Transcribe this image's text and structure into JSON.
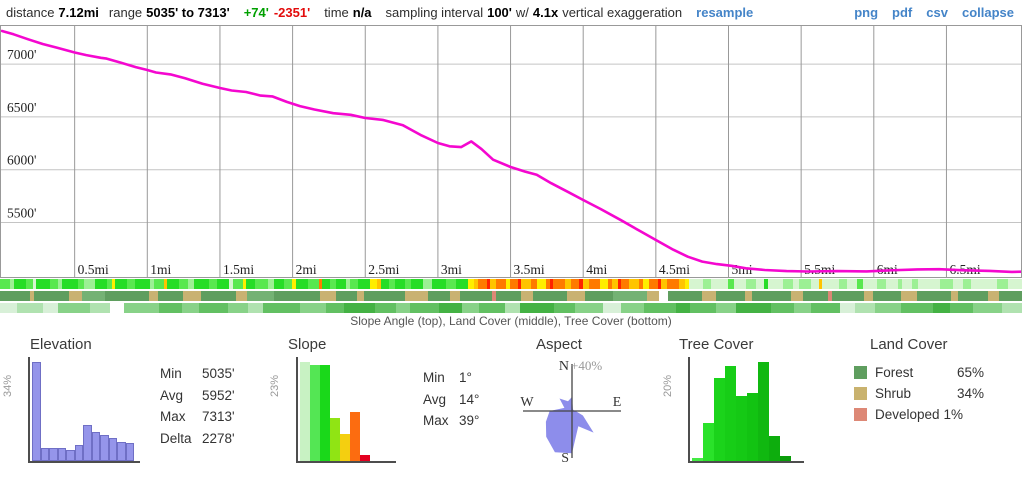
{
  "header": {
    "distance_label": "distance",
    "distance": "7.12mi",
    "range_label": "range",
    "range": "5035' to 7313'",
    "gain": "+74'",
    "loss": "-2351'",
    "time_label": "time",
    "time": "n/a",
    "interval_label": "sampling interval",
    "interval": "100'",
    "w_label": "w/",
    "exaggeration": "4.1x",
    "exaggeration_label": "vertical exaggeration",
    "resample": "resample",
    "links": [
      "png",
      "pdf",
      "csv",
      "collapse"
    ]
  },
  "chart": {
    "line_color": "#f407cf",
    "grid_color_v": "#999999",
    "grid_color_h": "#c4c4c4",
    "border_color": "#999999",
    "y_ticks": [
      {
        "label": "7000'",
        "elev": 7000
      },
      {
        "label": "6500'",
        "elev": 6500
      },
      {
        "label": "6000'",
        "elev": 6000
      },
      {
        "label": "5500'",
        "elev": 5500
      }
    ],
    "x_ticks": [
      {
        "label": "0.5mi",
        "mi": 0.5
      },
      {
        "label": "1mi",
        "mi": 1
      },
      {
        "label": "1.5mi",
        "mi": 1.5
      },
      {
        "label": "2mi",
        "mi": 2
      },
      {
        "label": "2.5mi",
        "mi": 2.5
      },
      {
        "label": "3mi",
        "mi": 3
      },
      {
        "label": "3.5mi",
        "mi": 3.5
      },
      {
        "label": "4mi",
        "mi": 4
      },
      {
        "label": "4.5mi",
        "mi": 4.5
      },
      {
        "label": "5mi",
        "mi": 5
      },
      {
        "label": "5.5mi",
        "mi": 5.5
      },
      {
        "label": "6mi",
        "mi": 6
      },
      {
        "label": "6.5mi",
        "mi": 6.5
      }
    ]
  },
  "chart_data": [
    {
      "type": "line",
      "title": "elevation profile",
      "x_unit": "mi",
      "y_unit": "ft",
      "x_range": [
        0,
        7.12
      ],
      "y_range": [
        4975,
        7355
      ],
      "points": [
        [
          0,
          7313
        ],
        [
          0.08,
          7282
        ],
        [
          0.18,
          7235
        ],
        [
          0.28,
          7190
        ],
        [
          0.38,
          7155
        ],
        [
          0.5,
          7110
        ],
        [
          0.58,
          7085
        ],
        [
          0.68,
          7060
        ],
        [
          0.72,
          7052
        ],
        [
          0.82,
          7012
        ],
        [
          0.92,
          6972
        ],
        [
          1.0,
          6944
        ],
        [
          1.06,
          6920
        ],
        [
          1.16,
          6902
        ],
        [
          1.26,
          6866
        ],
        [
          1.38,
          6814
        ],
        [
          1.5,
          6774
        ],
        [
          1.58,
          6750
        ],
        [
          1.68,
          6736
        ],
        [
          1.78,
          6702
        ],
        [
          1.86,
          6694
        ],
        [
          1.96,
          6642
        ],
        [
          2.05,
          6602
        ],
        [
          2.15,
          6570
        ],
        [
          2.28,
          6535
        ],
        [
          2.4,
          6520
        ],
        [
          2.5,
          6490
        ],
        [
          2.62,
          6472
        ],
        [
          2.76,
          6420
        ],
        [
          2.88,
          6330
        ],
        [
          3.0,
          6253
        ],
        [
          3.08,
          6222
        ],
        [
          3.16,
          6214
        ],
        [
          3.23,
          6268
        ],
        [
          3.3,
          6195
        ],
        [
          3.38,
          6095
        ],
        [
          3.5,
          6026
        ],
        [
          3.6,
          5982
        ],
        [
          3.68,
          5952
        ],
        [
          3.78,
          5872
        ],
        [
          3.9,
          5786
        ],
        [
          4.0,
          5713
        ],
        [
          4.12,
          5628
        ],
        [
          4.26,
          5522
        ],
        [
          4.4,
          5412
        ],
        [
          4.5,
          5334
        ],
        [
          4.62,
          5242
        ],
        [
          4.72,
          5176
        ],
        [
          4.82,
          5130
        ],
        [
          4.92,
          5106
        ],
        [
          5.02,
          5090
        ],
        [
          5.12,
          5066
        ],
        [
          5.25,
          5050
        ],
        [
          5.4,
          5040
        ],
        [
          5.55,
          5036
        ],
        [
          5.75,
          5040
        ],
        [
          5.95,
          5037
        ],
        [
          6.1,
          5046
        ],
        [
          6.3,
          5056
        ],
        [
          6.45,
          5058
        ],
        [
          6.6,
          5048
        ],
        [
          6.8,
          5042
        ],
        [
          6.95,
          5032
        ],
        [
          7.12,
          5036
        ]
      ]
    },
    {
      "type": "bar",
      "title": "Elevation",
      "unit": "%",
      "axis_max_label": "34%",
      "max_value": 34,
      "values": [
        34,
        4.5,
        4.5,
        4.5,
        3.9,
        5.6,
        12.5,
        9.8,
        8.9,
        7.8,
        6.5,
        6.2
      ],
      "color": "#9595ea"
    },
    {
      "type": "bar",
      "title": "Slope",
      "unit": "%",
      "axis_max_label": "23%",
      "max_value": 23,
      "values": [
        23,
        22.4,
        22.4,
        10,
        6.3,
        11.5,
        1.4
      ],
      "colors": [
        "#c8f2c3",
        "#54e654",
        "#1ad81a",
        "#90e414",
        "#f4cf10",
        "#fc6c10",
        "#e30020"
      ]
    },
    {
      "type": "rose",
      "title": "Aspect",
      "scale_max_pct": 40,
      "directions": [
        "N",
        "NNE",
        "NE",
        "ENE",
        "E",
        "ESE",
        "SE",
        "SSE",
        "S",
        "SSW",
        "SW",
        "WSW",
        "W",
        "WNW",
        "NW",
        "NNW"
      ],
      "values_pct": [
        12,
        2,
        1.5,
        1.5,
        3,
        10,
        26,
        14,
        36,
        38,
        31,
        24,
        19,
        7,
        15,
        9
      ],
      "color": "#8d8deb"
    },
    {
      "type": "bar",
      "title": "Tree Cover",
      "unit": "%",
      "axis_max_label": "20%",
      "max_value": 20.3,
      "values": [
        0.6,
        7.7,
        17,
        19.5,
        13.4,
        14,
        20.3,
        5.2,
        1
      ],
      "colors": [
        "#44ea44",
        "#2ae22a",
        "#1bd31b",
        "#17cd17",
        "#15c915",
        "#12c312",
        "#10b810",
        "#0dad0d",
        "#0a9c0a"
      ]
    },
    {
      "type": "table",
      "title": "Land Cover",
      "rows": [
        [
          "Forest",
          "65%"
        ],
        [
          "Shrub",
          "34%"
        ],
        [
          "Developed",
          "1%"
        ]
      ]
    }
  ],
  "strips": {
    "caption": "Slope Angle (top), Land Cover (middle), Tree Cover (bottom)",
    "palettes": {
      "slope": {
        "a": "#d6f5d0",
        "b": "#9cf094",
        "c": "#59e84f",
        "d": "#26dd26",
        "e": "#ffee00",
        "f": "#ffc400",
        "g": "#ff7a00",
        "h": "#ff2200"
      },
      "land": {
        "F": "#5f9e5f",
        "G": "#74b274",
        "S": "#c9b272",
        "W": "#ffffff",
        "D": "#dd8876"
      },
      "tree": {
        "1": "#ffffff",
        "2": "#d8f0d8",
        "3": "#b0e2b0",
        "4": "#88d288",
        "5": "#62c062",
        "6": "#44b244"
      }
    },
    "slope": [
      [
        10,
        "c"
      ],
      [
        4,
        "b"
      ],
      [
        12,
        "d"
      ],
      [
        6,
        "c"
      ],
      [
        3,
        "a"
      ],
      [
        14,
        "d"
      ],
      [
        8,
        "c"
      ],
      [
        4,
        "b"
      ],
      [
        16,
        "d"
      ],
      [
        6,
        "c"
      ],
      [
        10,
        "b"
      ],
      [
        12,
        "d"
      ],
      [
        5,
        "c"
      ],
      [
        3,
        "e"
      ],
      [
        12,
        "d"
      ],
      [
        8,
        "c"
      ],
      [
        14,
        "d"
      ],
      [
        4,
        "b"
      ],
      [
        10,
        "c"
      ],
      [
        3,
        "f"
      ],
      [
        12,
        "d"
      ],
      [
        9,
        "c"
      ],
      [
        6,
        "b"
      ],
      [
        14,
        "d"
      ],
      [
        8,
        "c"
      ],
      [
        12,
        "d"
      ],
      [
        4,
        "a"
      ],
      [
        10,
        "c"
      ],
      [
        3,
        "e"
      ],
      [
        9,
        "d"
      ],
      [
        12,
        "c"
      ],
      [
        6,
        "b"
      ],
      [
        10,
        "d"
      ],
      [
        8,
        "c"
      ],
      [
        4,
        "e"
      ],
      [
        12,
        "d"
      ],
      [
        10,
        "c"
      ],
      [
        3,
        "g"
      ],
      [
        8,
        "d"
      ],
      [
        6,
        "c"
      ],
      [
        10,
        "d"
      ],
      [
        4,
        "b"
      ],
      [
        8,
        "c"
      ],
      [
        12,
        "d"
      ],
      [
        6,
        "e"
      ],
      [
        4,
        "f"
      ],
      [
        8,
        "d"
      ],
      [
        6,
        "c"
      ],
      [
        10,
        "d"
      ],
      [
        6,
        "c"
      ],
      [
        12,
        "d"
      ],
      [
        8,
        "b"
      ],
      [
        14,
        "d"
      ],
      [
        10,
        "c"
      ],
      [
        12,
        "d"
      ],
      [
        6,
        "e"
      ],
      [
        4,
        "f"
      ],
      [
        8,
        "g"
      ],
      [
        3,
        "h"
      ],
      [
        6,
        "f"
      ],
      [
        10,
        "g"
      ],
      [
        4,
        "e"
      ],
      [
        8,
        "g"
      ],
      [
        3,
        "h"
      ],
      [
        10,
        "f"
      ],
      [
        6,
        "g"
      ],
      [
        8,
        "e"
      ],
      [
        4,
        "g"
      ],
      [
        3,
        "h"
      ],
      [
        12,
        "g"
      ],
      [
        6,
        "f"
      ],
      [
        8,
        "g"
      ],
      [
        4,
        "h"
      ],
      [
        6,
        "f"
      ],
      [
        10,
        "g"
      ],
      [
        8,
        "e"
      ],
      [
        4,
        "g"
      ],
      [
        6,
        "f"
      ],
      [
        3,
        "h"
      ],
      [
        8,
        "g"
      ],
      [
        10,
        "f"
      ],
      [
        4,
        "g"
      ],
      [
        6,
        "e"
      ],
      [
        8,
        "g"
      ],
      [
        3,
        "h"
      ],
      [
        6,
        "f"
      ],
      [
        4,
        "g"
      ],
      [
        8,
        "g"
      ],
      [
        6,
        "f"
      ],
      [
        4,
        "e"
      ],
      [
        14,
        "a"
      ],
      [
        8,
        "b"
      ],
      [
        16,
        "a"
      ],
      [
        6,
        "c"
      ],
      [
        12,
        "a"
      ],
      [
        10,
        "b"
      ],
      [
        8,
        "a"
      ],
      [
        4,
        "d"
      ],
      [
        14,
        "a"
      ],
      [
        10,
        "b"
      ],
      [
        6,
        "a"
      ],
      [
        12,
        "b"
      ],
      [
        8,
        "a"
      ],
      [
        3,
        "f"
      ],
      [
        16,
        "a"
      ],
      [
        8,
        "b"
      ],
      [
        10,
        "a"
      ],
      [
        6,
        "c"
      ],
      [
        14,
        "a"
      ],
      [
        8,
        "b"
      ],
      [
        12,
        "a"
      ],
      [
        4,
        "b"
      ],
      [
        10,
        "a"
      ],
      [
        6,
        "b"
      ],
      [
        14,
        "a"
      ],
      [
        8,
        "a"
      ],
      [
        12,
        "b"
      ],
      [
        10,
        "a"
      ],
      [
        8,
        "b"
      ],
      [
        14,
        "a"
      ],
      [
        12,
        "a"
      ],
      [
        10,
        "b"
      ],
      [
        14,
        "a"
      ]
    ],
    "land": [
      [
        26,
        "F"
      ],
      [
        4,
        "S"
      ],
      [
        30,
        "F"
      ],
      [
        12,
        "S"
      ],
      [
        20,
        "G"
      ],
      [
        38,
        "F"
      ],
      [
        8,
        "S"
      ],
      [
        22,
        "F"
      ],
      [
        16,
        "S"
      ],
      [
        30,
        "F"
      ],
      [
        10,
        "S"
      ],
      [
        24,
        "G"
      ],
      [
        40,
        "F"
      ],
      [
        14,
        "S"
      ],
      [
        18,
        "F"
      ],
      [
        6,
        "S"
      ],
      [
        36,
        "F"
      ],
      [
        20,
        "S"
      ],
      [
        20,
        "F"
      ],
      [
        8,
        "S"
      ],
      [
        28,
        "F"
      ],
      [
        4,
        "D"
      ],
      [
        22,
        "F"
      ],
      [
        10,
        "S"
      ],
      [
        30,
        "F"
      ],
      [
        16,
        "S"
      ],
      [
        24,
        "F"
      ],
      [
        30,
        "G"
      ],
      [
        10,
        "S"
      ],
      [
        8,
        "W"
      ],
      [
        30,
        "F"
      ],
      [
        12,
        "S"
      ],
      [
        26,
        "F"
      ],
      [
        6,
        "S"
      ],
      [
        34,
        "F"
      ],
      [
        10,
        "S"
      ],
      [
        22,
        "F"
      ],
      [
        4,
        "D"
      ],
      [
        28,
        "F"
      ],
      [
        8,
        "S"
      ],
      [
        24,
        "F"
      ],
      [
        14,
        "S"
      ],
      [
        30,
        "F"
      ],
      [
        6,
        "S"
      ],
      [
        26,
        "F"
      ],
      [
        10,
        "S"
      ],
      [
        20,
        "F"
      ]
    ],
    "tree": [
      [
        12,
        "2"
      ],
      [
        18,
        "3"
      ],
      [
        10,
        "2"
      ],
      [
        22,
        "4"
      ],
      [
        14,
        "3"
      ],
      [
        10,
        "1"
      ],
      [
        24,
        "4"
      ],
      [
        16,
        "5"
      ],
      [
        12,
        "4"
      ],
      [
        20,
        "5"
      ],
      [
        14,
        "4"
      ],
      [
        10,
        "3"
      ],
      [
        26,
        "5"
      ],
      [
        18,
        "4"
      ],
      [
        12,
        "5"
      ],
      [
        22,
        "6"
      ],
      [
        14,
        "5"
      ],
      [
        10,
        "4"
      ],
      [
        20,
        "5"
      ],
      [
        16,
        "6"
      ],
      [
        12,
        "4"
      ],
      [
        18,
        "5"
      ],
      [
        10,
        "3"
      ],
      [
        24,
        "6"
      ],
      [
        14,
        "5"
      ],
      [
        20,
        "4"
      ],
      [
        12,
        "2"
      ],
      [
        16,
        "4"
      ],
      [
        22,
        "5"
      ],
      [
        10,
        "6"
      ],
      [
        18,
        "5"
      ],
      [
        14,
        "4"
      ],
      [
        24,
        "6"
      ],
      [
        16,
        "5"
      ],
      [
        12,
        "4"
      ],
      [
        20,
        "5"
      ],
      [
        10,
        "2"
      ],
      [
        14,
        "3"
      ],
      [
        18,
        "4"
      ],
      [
        22,
        "5"
      ],
      [
        12,
        "6"
      ],
      [
        16,
        "5"
      ],
      [
        20,
        "4"
      ],
      [
        14,
        "3"
      ]
    ]
  },
  "panels": {
    "elevation": {
      "title": "Elevation",
      "pct_label": "34%",
      "stats": [
        [
          "Min",
          "5035'"
        ],
        [
          "Avg",
          "5952'"
        ],
        [
          "Max",
          "7313'"
        ],
        [
          "Delta",
          "2278'"
        ]
      ]
    },
    "slope": {
      "title": "Slope",
      "pct_label": "23%",
      "stats": [
        [
          "Min",
          "1°"
        ],
        [
          "Avg",
          "14°"
        ],
        [
          "Max",
          "39°"
        ]
      ]
    },
    "aspect": {
      "title": "Aspect",
      "scale_label": "+40%",
      "compass": {
        "n": "N",
        "e": "E",
        "s": "S",
        "w": "W"
      }
    },
    "tree": {
      "title": "Tree Cover",
      "pct_label": "20%"
    },
    "land": {
      "title": "Land Cover",
      "legend": [
        {
          "color": "#5f9e5f",
          "label": "Forest",
          "value": "65%"
        },
        {
          "color": "#c9b26e",
          "label": "Shrub",
          "value": "34%"
        },
        {
          "color": "#dd8876",
          "label": "Developed",
          "value": "1%"
        }
      ]
    }
  }
}
